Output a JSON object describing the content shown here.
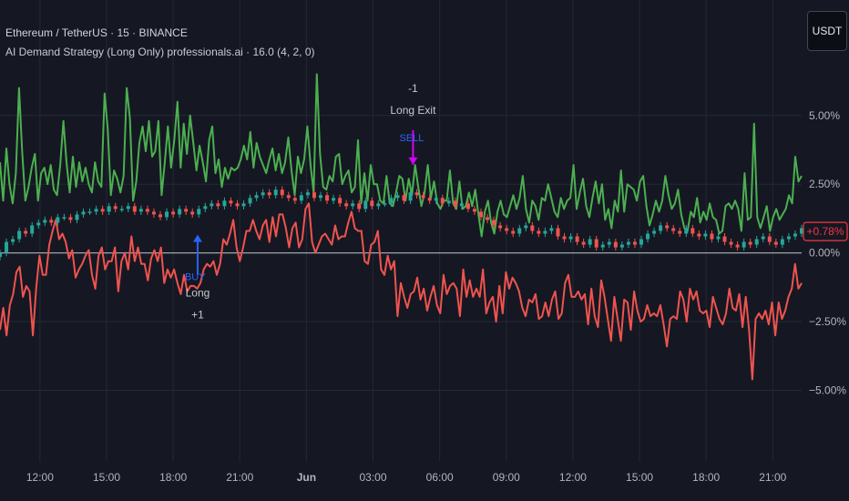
{
  "header": {
    "symbol_title": "Ethereum / TetherUS · 15 · BINANCE",
    "indicator_title": "AI Demand Strategy (Long Only) professionals.ai · 16.0 (4, 2, 0)",
    "currency_button": "USDT"
  },
  "colors": {
    "background": "#151822",
    "grid": "#242835",
    "bull": "#26a69a",
    "bear": "#ef5350",
    "upper_line": "#4caf50",
    "lower_line": "#f0534f",
    "zero_line": "#9ea3ad",
    "buy_marker": "#2962ff",
    "sell_marker": "#d500f9",
    "price_tag": "#f23645"
  },
  "chart_data": {
    "type": "line",
    "symbol": "Ethereum / TetherUS",
    "interval": "15",
    "exchange": "BINANCE",
    "x_ticks": [
      "12:00",
      "15:00",
      "18:00",
      "21:00",
      "Jun",
      "03:00",
      "06:00",
      "09:00",
      "12:00",
      "15:00",
      "18:00",
      "21:00"
    ],
    "x_tick_hours": [
      12,
      15,
      18,
      21,
      24,
      27,
      30,
      33,
      36,
      39,
      42,
      45
    ],
    "x_range_hours": [
      10.2,
      46.3
    ],
    "y_ticks": [
      5.0,
      2.5,
      0.0,
      -2.5,
      -5.0
    ],
    "y_tick_labels": [
      "5.00%",
      "2.50%",
      "0.00%",
      "−2.50%",
      "−5.00%"
    ],
    "y_range": [
      -7.6,
      9.2
    ],
    "current_value": 0.78,
    "current_value_label": "+0.78%",
    "series": [
      {
        "role": "upper",
        "values": [
          3.3,
          1.9,
          3.8,
          2.5,
          1.8,
          2.9,
          6.0,
          3.7,
          1.9,
          2.4,
          3.1,
          3.6,
          1.9,
          2.9,
          3.1,
          2.5,
          3.2,
          2.3,
          2.1,
          3.2,
          4.8,
          3.3,
          2.2,
          3.5,
          2.4,
          3.3,
          2.6,
          3.1,
          2.5,
          2.2,
          3.3,
          2.6,
          2.4,
          5.8,
          4.5,
          2.1,
          3.0,
          2.7,
          2.2,
          2.8,
          6.0,
          4.9,
          1.9,
          2.6,
          4.0,
          4.6,
          3.7,
          4.8,
          3.5,
          3.7,
          4.8,
          2.1,
          3.3,
          4.6,
          3.1,
          4.1,
          5.5,
          3.1,
          4.7,
          3.6,
          5.0,
          4.0,
          3.0,
          3.9,
          3.3,
          2.6,
          4.1,
          4.6,
          2.9,
          3.4,
          2.4,
          3.1,
          2.7,
          3.1,
          3.0,
          3.1,
          3.4,
          3.9,
          3.4,
          4.4,
          3.1,
          4.0,
          3.5,
          3.2,
          2.9,
          3.4,
          3.8,
          3.0,
          3.6,
          2.9,
          3.3,
          4.2,
          3.0,
          2.1,
          3.5,
          2.9,
          3.4,
          4.6,
          3.2,
          2.2,
          6.5,
          3.6,
          2.4,
          2.3,
          2.8,
          2.6,
          3.5,
          3.6,
          2.5,
          2.8,
          3.0,
          2.2,
          2.4,
          4.1,
          1.8,
          2.9,
          1.9,
          3.2,
          2.5,
          2.5,
          1.9,
          1.8,
          2.8,
          1.8,
          1.7,
          2.2,
          2.8,
          2.7,
          1.9,
          2.7,
          2.1,
          3.2,
          2.4,
          1.7,
          2.2,
          3.2,
          2.0,
          2.6,
          1.8,
          1.6,
          1.9,
          1.9,
          3.0,
          1.8,
          1.6,
          2.6,
          1.6,
          1.7,
          2.2,
          1.7,
          2.3,
          1.4,
          0.6,
          1.5,
          1.9,
          1.1,
          0.7,
          1.5,
          1.9,
          1.4,
          1.3,
          1.7,
          2.1,
          1.6,
          2.0,
          2.8,
          1.6,
          1.1,
          1.9,
          1.7,
          1.2,
          2.0,
          1.9,
          2.5,
          2.0,
          1.5,
          1.3,
          2.0,
          1.6,
          1.9,
          2.0,
          3.2,
          1.6,
          2.2,
          2.7,
          1.7,
          1.3,
          2.0,
          2.6,
          1.8,
          2.5,
          1.2,
          1.6,
          0.9,
          1.9,
          1.5,
          3.0,
          1.5,
          2.5,
          2.4,
          2.3,
          1.9,
          2.6,
          2.8,
          1.7,
          1.0,
          1.4,
          1.9,
          1.5,
          1.9,
          2.8,
          2.1,
          1.6,
          1.8,
          2.3,
          1.4,
          0.9,
          0.8,
          1.5,
          1.3,
          2.0,
          1.1,
          1.5,
          1.2,
          1.8,
          1.3,
          1.2,
          0.7,
          0.8,
          1.7,
          1.8,
          1.6,
          1.9,
          1.6,
          0.8,
          2.9,
          1.2,
          1.3,
          4.7,
          1.3,
          0.9,
          1.3,
          1.7,
          0.8,
          1.3,
          1.6,
          1.2,
          1.4,
          1.6,
          2.1,
          1.8,
          3.5,
          2.6,
          2.8
        ]
      },
      {
        "role": "lower",
        "values": [
          -2.8,
          -2.0,
          -3.0,
          -1.9,
          -1.5,
          -0.7,
          -0.5,
          -1.6,
          -1.2,
          -1.4,
          -3.0,
          -1.3,
          -0.1,
          -0.8,
          -0.8,
          0.3,
          0.8,
          1.2,
          0.5,
          0.7,
          0.4,
          -0.2,
          0.1,
          -0.9,
          -0.6,
          -0.4,
          -0.1,
          0.1,
          -0.8,
          -1.3,
          -0.1,
          0.2,
          -0.6,
          -0.3,
          -0.3,
          0.2,
          -1.4,
          -0.3,
          0.0,
          -0.6,
          0.6,
          -0.3,
          0.2,
          -0.4,
          -0.4,
          -1.0,
          -0.2,
          0.1,
          -0.3,
          0.2,
          -1.1,
          -0.6,
          -0.9,
          -0.6,
          -1.1,
          -1.5,
          -0.8,
          -1.4,
          -1.2,
          -1.2,
          -1.3,
          -1.1,
          -0.6,
          -0.4,
          -0.5,
          -0.3,
          -0.8,
          -0.4,
          0.5,
          0.3,
          0.7,
          1.2,
          0.2,
          -0.3,
          0.2,
          0.8,
          0.8,
          1.2,
          0.8,
          0.5,
          1.0,
          1.2,
          0.4,
          1.3,
          0.6,
          1.4,
          1.4,
          0.9,
          0.2,
          0.9,
          1.1,
          0.2,
          0.5,
          1.6,
          1.8,
          0.4,
          0.0,
          0.3,
          0.6,
          0.7,
          0.5,
          0.3,
          1.0,
          0.5,
          0.6,
          0.6,
          1.1,
          1.5,
          0.9,
          0.8,
          0.8,
          -0.3,
          -0.4,
          0.3,
          0.4,
          0.8,
          -0.6,
          -0.8,
          -0.1,
          -0.6,
          -0.3,
          -2.3,
          -1.1,
          -1.6,
          -2.0,
          -1.5,
          -1.4,
          -0.9,
          -1.7,
          -1.3,
          -2.1,
          -1.6,
          -1.2,
          -1.9,
          -2.2,
          -0.8,
          -1.5,
          -1.2,
          -1.1,
          -1.3,
          -2.3,
          -0.6,
          -1.6,
          -1.0,
          -1.6,
          -1.3,
          -1.6,
          -0.6,
          -2.2,
          -1.8,
          -1.6,
          -2.5,
          -1.2,
          -2.2,
          -0.7,
          -1.3,
          -0.9,
          -1.1,
          -1.4,
          -2.0,
          -2.3,
          -1.7,
          -1.8,
          -1.5,
          -2.4,
          -2.3,
          -1.8,
          -2.3,
          -1.7,
          -1.4,
          -2.4,
          -2.2,
          -1.1,
          -0.8,
          -1.6,
          -1.6,
          -1.4,
          -1.7,
          -1.5,
          -2.6,
          -1.3,
          -2.3,
          -2.7,
          -1.0,
          -1.6,
          -2.4,
          -3.2,
          -1.6,
          -2.4,
          -3.2,
          -1.7,
          -1.8,
          -2.8,
          -1.4,
          -2.1,
          -2.5,
          -2.4,
          -1.9,
          -2.3,
          -2.2,
          -2.3,
          -1.9,
          -2.6,
          -3.4,
          -2.4,
          -2.3,
          -2.4,
          -1.4,
          -1.7,
          -2.5,
          -1.3,
          -1.7,
          -1.4,
          -2.1,
          -2.2,
          -2.1,
          -2.7,
          -1.6,
          -2.0,
          -2.4,
          -2.6,
          -2.2,
          -1.3,
          -2.0,
          -2.1,
          -1.5,
          -2.7,
          -1.6,
          -2.8,
          -4.6,
          -2.4,
          -2.2,
          -2.4,
          -2.1,
          -2.6,
          -1.8,
          -3.0,
          -1.8,
          -2.4,
          -2.1,
          -1.6,
          -1.3,
          -0.4,
          -1.3,
          -1.1
        ]
      }
    ],
    "price_series": {
      "role": "candles_close_pct",
      "values": [
        0.0,
        0.4,
        0.5,
        0.8,
        0.7,
        1.0,
        1.1,
        1.2,
        1.1,
        1.3,
        1.3,
        1.2,
        1.4,
        1.5,
        1.5,
        1.6,
        1.5,
        1.7,
        1.6,
        1.6,
        1.7,
        1.5,
        1.6,
        1.5,
        1.4,
        1.3,
        1.5,
        1.4,
        1.6,
        1.5,
        1.4,
        1.6,
        1.7,
        1.8,
        1.7,
        1.9,
        1.8,
        1.7,
        1.8,
        2.0,
        2.1,
        2.2,
        2.1,
        2.3,
        2.1,
        2.0,
        1.9,
        2.1,
        2.2,
        2.0,
        2.1,
        1.9,
        2.0,
        1.8,
        1.7,
        1.8,
        1.6,
        1.9,
        1.7,
        1.8,
        1.8,
        2.0,
        2.1,
        1.9,
        2.2,
        2.1,
        2.0,
        1.9,
        2.0,
        1.8,
        1.9,
        1.7,
        1.8,
        1.6,
        1.5,
        1.3,
        1.2,
        1.0,
        0.9,
        0.8,
        0.7,
        0.9,
        1.0,
        0.8,
        0.7,
        0.8,
        0.9,
        0.6,
        0.5,
        0.6,
        0.4,
        0.3,
        0.5,
        0.2,
        0.3,
        0.4,
        0.2,
        0.3,
        0.4,
        0.3,
        0.5,
        0.7,
        0.8,
        1.0,
        0.9,
        0.8,
        0.7,
        0.9,
        0.7,
        0.6,
        0.7,
        0.5,
        0.6,
        0.4,
        0.3,
        0.2,
        0.4,
        0.3,
        0.5,
        0.6,
        0.4,
        0.3,
        0.5,
        0.6,
        0.7,
        0.9
      ]
    },
    "annotations": [
      {
        "kind": "buy",
        "x_hours": 19.1,
        "value": 0.0,
        "label": "BUY",
        "text_top": "Long",
        "text_bottom": "+1"
      },
      {
        "kind": "sell",
        "x_hours": 28.8,
        "value": 4.0,
        "label": "SELL",
        "text_top": "-1",
        "text_bottom": "Long Exit"
      }
    ]
  }
}
